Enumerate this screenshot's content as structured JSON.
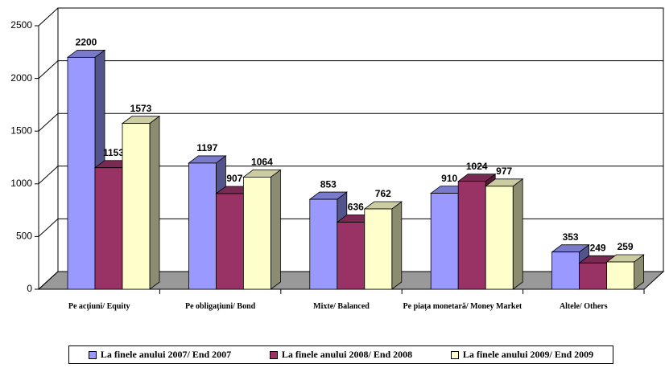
{
  "chart_data": {
    "type": "bar3d",
    "categories": [
      "Pe acţiuni/ Equity",
      "Pe obligaţiuni/ Bond",
      "Mixte/ Balanced",
      "Pe piaţa monetară/ Money Market",
      "Altele/ Others"
    ],
    "series": [
      {
        "name": "La finele anului 2007/ End 2007",
        "color": "#9999ff",
        "values": [
          2200,
          1197,
          853,
          910,
          353
        ]
      },
      {
        "name": "La finele anului 2008/ End 2008",
        "color": "#993366",
        "values": [
          1153,
          907,
          636,
          1024,
          249
        ]
      },
      {
        "name": "La finele anului 2009/ End 2009",
        "color": "#ffffcc",
        "values": [
          1573,
          1064,
          762,
          977,
          259
        ]
      }
    ],
    "ylim": [
      0,
      2500
    ],
    "yticks": [
      0,
      500,
      1000,
      1500,
      2000,
      2500
    ],
    "grid": true,
    "legend": "bottom"
  }
}
